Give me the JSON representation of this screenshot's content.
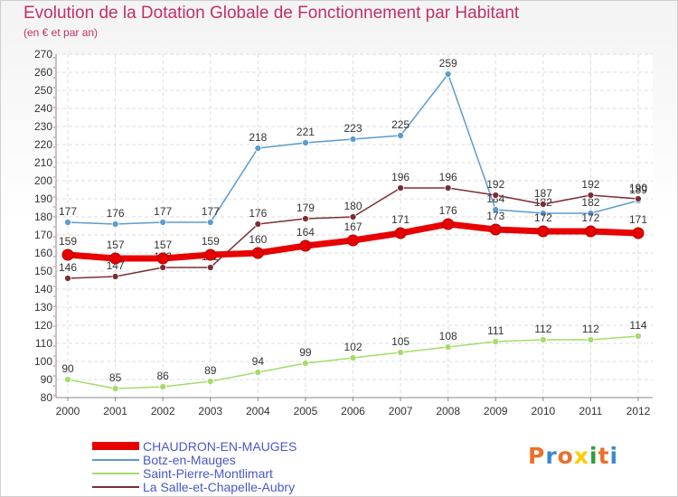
{
  "title": "Evolution de la Dotation Globale de Fonctionnement par Habitant",
  "subtitle": "(en € et par an)",
  "logo": "Proxiti",
  "chart_data": {
    "type": "line",
    "x": [
      "2000",
      "2001",
      "2002",
      "2003",
      "2004",
      "2005",
      "2006",
      "2007",
      "2008",
      "2009",
      "2010",
      "2011",
      "2012"
    ],
    "ylim": [
      80,
      270
    ],
    "yticks": [
      80,
      90,
      100,
      110,
      120,
      130,
      140,
      150,
      160,
      170,
      180,
      190,
      200,
      210,
      220,
      230,
      240,
      250,
      260,
      270
    ],
    "grid": true,
    "legend_position": "bottom-left",
    "series": [
      {
        "name": "CHAUDRON-EN-MAUGES",
        "color": "#e80000",
        "values": [
          159,
          157,
          157,
          159,
          160,
          164,
          167,
          171,
          176,
          173,
          172,
          172,
          171
        ]
      },
      {
        "name": "Botz-en-Mauges",
        "color": "#5b9bd0",
        "values": [
          177,
          176,
          177,
          177,
          218,
          221,
          223,
          225,
          259,
          184,
          182,
          182,
          189
        ]
      },
      {
        "name": "Saint-Pierre-Montlimart",
        "color": "#a4dc6a",
        "values": [
          90,
          85,
          86,
          89,
          94,
          99,
          102,
          105,
          108,
          111,
          112,
          112,
          114
        ]
      },
      {
        "name": "La Salle-et-Chapelle-Aubry",
        "color": "#7a2e34",
        "values": [
          146,
          147,
          152,
          152,
          176,
          179,
          180,
          196,
          196,
          192,
          187,
          192,
          190
        ]
      }
    ]
  }
}
